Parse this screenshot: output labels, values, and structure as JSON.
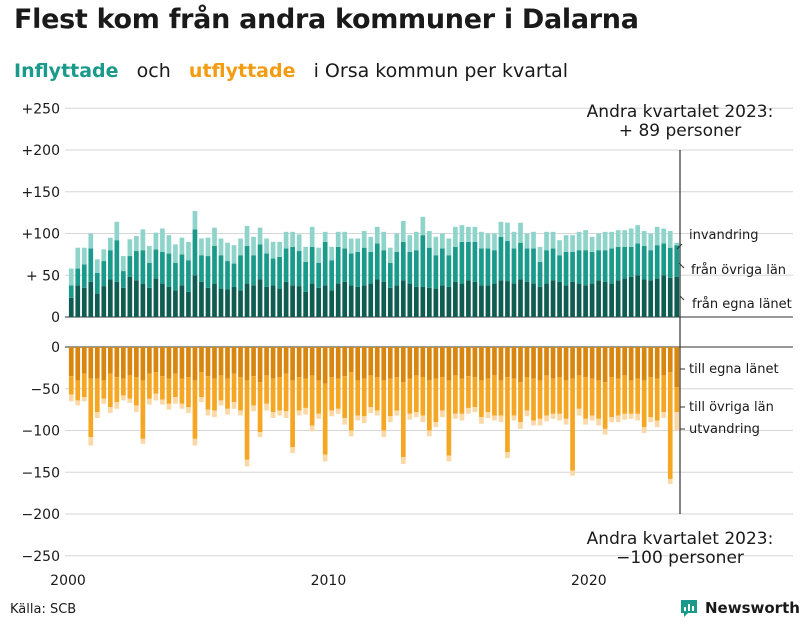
{
  "title": "Flest kom från andra kommuner i Dalarna",
  "subtitle": {
    "in_word": "Inflyttade",
    "and_word": "och",
    "out_word": "utflyttade",
    "rest": "i Orsa kommun per kvartal"
  },
  "source": "Källa: SCB",
  "brand": "Newsworthy",
  "colors": {
    "in_local": "#0f5c52",
    "in_other": "#1a9a8a",
    "in_immig": "#8fd4cb",
    "out_local": "#d9860f",
    "out_other": "#f5a623",
    "out_emig": "#fbd9a6"
  },
  "chart_data": {
    "type": "bar",
    "stacked": true,
    "x_start": "2000 Q1",
    "x_end": "2023 Q2",
    "x_ticks": [
      "2000",
      "2010",
      "2020"
    ],
    "y_ticks_top": [
      "+250",
      "+200",
      "+150",
      "+100",
      "+ 50",
      "0"
    ],
    "y_ticks_bottom": [
      "0",
      "−50",
      "−100",
      "−150",
      "−200",
      "−250"
    ],
    "ylim_top": [
      0,
      250
    ],
    "ylim_bottom": [
      -250,
      0
    ],
    "series_in": [
      {
        "name": "från egna länet",
        "values": [
          23,
          38,
          35,
          42,
          28,
          37,
          45,
          42,
          35,
          48,
          44,
          40,
          35,
          46,
          40,
          36,
          32,
          38,
          30,
          50,
          42,
          35,
          40,
          34,
          33,
          36,
          32,
          40,
          38,
          45,
          36,
          38,
          34,
          42,
          38,
          37,
          30,
          40,
          35,
          38,
          32,
          40,
          42,
          38,
          36,
          38,
          40,
          45,
          42,
          35,
          38,
          44,
          40,
          36,
          36,
          35,
          34,
          38,
          36,
          42,
          40,
          44,
          42,
          38,
          38,
          40,
          44,
          43,
          40,
          45,
          42,
          40,
          36,
          40,
          44,
          42,
          38,
          42,
          40,
          38,
          40,
          44,
          42,
          40,
          44,
          46,
          48,
          50,
          45,
          44,
          46,
          50,
          47,
          48
        ]
      },
      {
        "name": "från övriga län",
        "values": [
          15,
          20,
          28,
          40,
          25,
          30,
          35,
          50,
          20,
          25,
          35,
          40,
          30,
          35,
          38,
          40,
          33,
          37,
          38,
          55,
          32,
          38,
          45,
          40,
          34,
          28,
          42,
          45,
          36,
          42,
          40,
          32,
          38,
          40,
          46,
          42,
          36,
          44,
          30,
          52,
          36,
          44,
          40,
          38,
          42,
          45,
          38,
          43,
          38,
          30,
          40,
          46,
          38,
          44,
          62,
          48,
          40,
          44,
          38,
          42,
          50,
          46,
          48,
          44,
          44,
          40,
          52,
          48,
          42,
          44,
          40,
          42,
          30,
          40,
          38,
          32,
          40,
          36,
          40,
          42,
          38,
          36,
          38,
          42,
          40,
          38,
          36,
          38,
          40,
          36,
          40,
          38,
          36,
          38
        ]
      },
      {
        "name": "invandring",
        "values": [
          20,
          25,
          20,
          18,
          16,
          14,
          15,
          22,
          18,
          20,
          18,
          25,
          20,
          20,
          28,
          22,
          22,
          20,
          22,
          22,
          20,
          22,
          22,
          20,
          22,
          22,
          20,
          24,
          22,
          20,
          18,
          20,
          18,
          20,
          18,
          20,
          18,
          24,
          18,
          12,
          16,
          18,
          20,
          18,
          16,
          20,
          18,
          20,
          22,
          18,
          22,
          25,
          20,
          22,
          22,
          20,
          22,
          18,
          20,
          24,
          20,
          18,
          18,
          20,
          18,
          20,
          18,
          22,
          20,
          24,
          18,
          20,
          18,
          22,
          20,
          18,
          20,
          20,
          22,
          24,
          18,
          20,
          22,
          20,
          20,
          20,
          22,
          22,
          18,
          20,
          22,
          18,
          20,
          3
        ]
      }
    ],
    "series_out": [
      {
        "name": "till egna länet",
        "values": [
          -35,
          -40,
          -32,
          -38,
          -38,
          -40,
          -32,
          -36,
          -38,
          -34,
          -36,
          -40,
          -32,
          -30,
          -35,
          -38,
          -32,
          -38,
          -36,
          -40,
          -30,
          -35,
          -38,
          -34,
          -38,
          -32,
          -36,
          -40,
          -35,
          -42,
          -34,
          -38,
          -36,
          -32,
          -40,
          -36,
          -38,
          -34,
          -40,
          -44,
          -36,
          -38,
          -35,
          -30,
          -40,
          -38,
          -34,
          -36,
          -40,
          -38,
          -36,
          -42,
          -38,
          -34,
          -36,
          -40,
          -38,
          -36,
          -40,
          -34,
          -38,
          -35,
          -36,
          -40,
          -38,
          -34,
          -40,
          -36,
          -38,
          -42,
          -36,
          -38,
          -40,
          -34,
          -38,
          -36,
          -40,
          -38,
          -34,
          -36,
          -38,
          -40,
          -42,
          -36,
          -38,
          -34,
          -40,
          -38,
          -40,
          -36,
          -38,
          -34,
          -30,
          -48
        ]
      },
      {
        "name": "till övriga län",
        "values": [
          -22,
          -24,
          -28,
          -70,
          -40,
          -22,
          -40,
          -30,
          -20,
          -28,
          -34,
          -70,
          -30,
          -26,
          -28,
          -30,
          -28,
          -30,
          -36,
          -70,
          -30,
          -40,
          -38,
          -30,
          -36,
          -34,
          -40,
          -95,
          -35,
          -60,
          -34,
          -40,
          -40,
          -45,
          -80,
          -40,
          -35,
          -60,
          -40,
          -85,
          -40,
          -36,
          -50,
          -70,
          -42,
          -45,
          -38,
          -40,
          -60,
          -45,
          -40,
          -90,
          -42,
          -44,
          -46,
          -60,
          -52,
          -40,
          -90,
          -46,
          -42,
          -38,
          -36,
          -44,
          -40,
          -48,
          -42,
          -90,
          -44,
          -48,
          -40,
          -50,
          -46,
          -48,
          -42,
          -44,
          -46,
          -110,
          -40,
          -50,
          -44,
          -46,
          -56,
          -48,
          -44,
          -46,
          -40,
          -42,
          -56,
          -48,
          -50,
          -44,
          -128,
          -30
        ]
      },
      {
        "name": "utvandring",
        "values": [
          -8,
          -6,
          -5,
          -10,
          -7,
          -6,
          -7,
          -8,
          -6,
          -5,
          -8,
          -6,
          -7,
          -8,
          -6,
          -7,
          -8,
          -6,
          -7,
          -8,
          -6,
          -7,
          -8,
          -6,
          -7,
          -8,
          -6,
          -8,
          -7,
          -6,
          -8,
          -7,
          -6,
          -8,
          -7,
          -6,
          -8,
          -7,
          -6,
          -8,
          -7,
          -6,
          -8,
          -7,
          -6,
          -8,
          -7,
          -6,
          -8,
          -7,
          -6,
          -8,
          -7,
          -6,
          -8,
          -7,
          -6,
          -8,
          -7,
          -6,
          -8,
          -7,
          -6,
          -8,
          -7,
          -6,
          -8,
          -7,
          -6,
          -8,
          -7,
          -6,
          -8,
          -7,
          -6,
          -8,
          -7,
          -6,
          -8,
          -7,
          -6,
          -8,
          -7,
          -6,
          -8,
          -7,
          -6,
          -8,
          -7,
          -6,
          -8,
          -7,
          -6,
          -22
        ]
      }
    ],
    "annotation_top": [
      "Andra kvartalet 2023:",
      "+ 89 personer"
    ],
    "annotation_bottom": [
      "Andra kvartalet 2023:",
      "−100 personer"
    ],
    "labels_in": [
      "invandring",
      "från övriga län",
      "från egna länet"
    ],
    "labels_out": [
      "till egna länet",
      "till övriga län",
      "utvandring"
    ]
  }
}
